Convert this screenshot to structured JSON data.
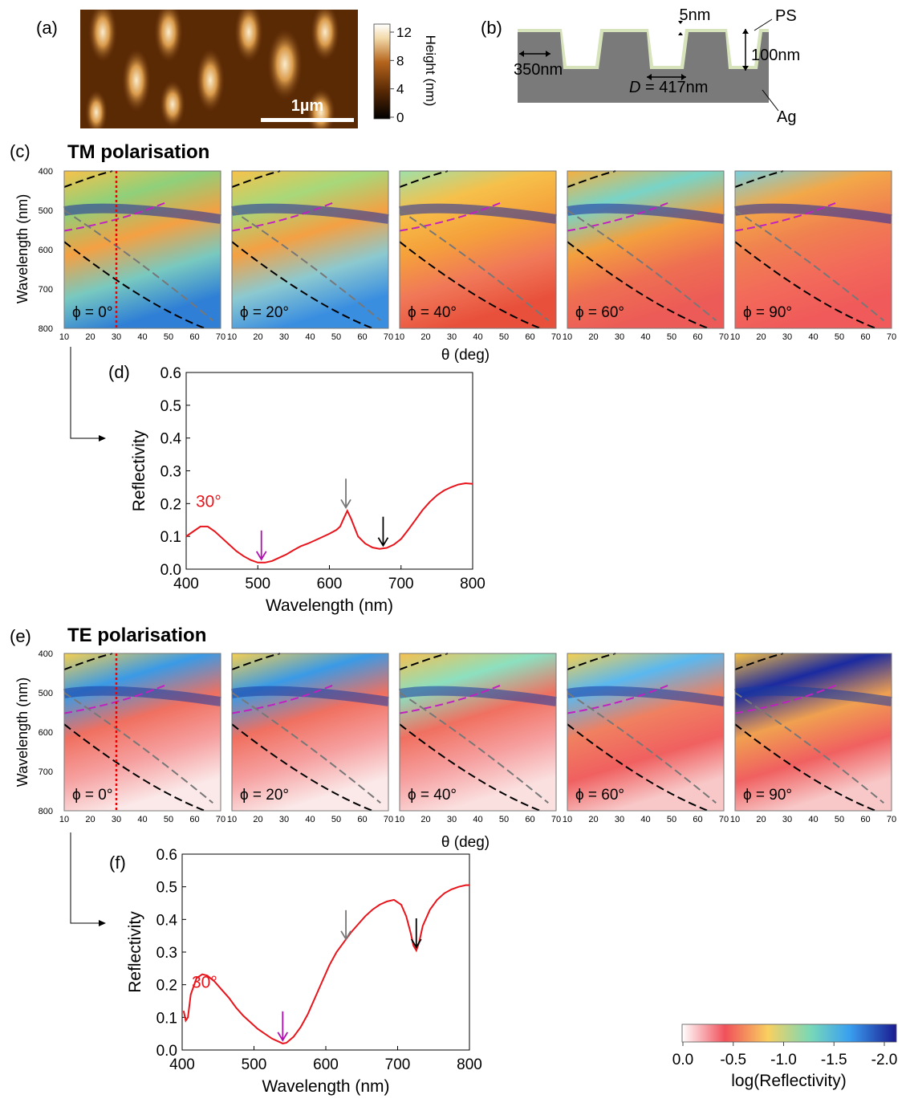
{
  "panel_labels": {
    "a": "(a)",
    "b": "(b)",
    "c": "(c)",
    "d": "(d)",
    "e": "(e)",
    "f": "(f)"
  },
  "afm": {
    "scalebar": "1µm",
    "colorbar_title": "Height (nm)",
    "colorbar_ticks": [
      "12",
      "8",
      "4",
      "0"
    ],
    "colors": [
      "#000000",
      "#5a2a05",
      "#b5651d",
      "#f2d9a8",
      "#ffffff"
    ]
  },
  "schematic": {
    "top_gap": "5nm",
    "coating": "PS",
    "depth": "100nm",
    "width": "350nm",
    "period_symbol": "D",
    "period_value": " = 417nm",
    "substrate": "Ag",
    "colors": {
      "ps": "#d6e3bb",
      "ag": "#7a7a7a"
    }
  },
  "tm": {
    "title": "TM polarisation",
    "ylabel": "Wavelength (nm)",
    "xlabel": "θ (deg)",
    "yticks": [
      "400",
      "500",
      "600",
      "700",
      "800"
    ],
    "xticks": [
      "10",
      "20",
      "30",
      "40",
      "50",
      "60",
      "70"
    ],
    "phi_labels": [
      "ϕ = 0°",
      "ϕ = 20°",
      "ϕ = 40°",
      "ϕ = 60°",
      "ϕ = 90°"
    ]
  },
  "te": {
    "title": "TE polarisation",
    "ylabel": "Wavelength (nm)",
    "xlabel": "θ (deg)",
    "yticks": [
      "400",
      "500",
      "600",
      "700",
      "800"
    ],
    "xticks": [
      "10",
      "20",
      "30",
      "40",
      "50",
      "60",
      "70"
    ],
    "phi_labels": [
      "ϕ = 0°",
      "ϕ = 20°",
      "ϕ = 40°",
      "ϕ = 60°",
      "ϕ = 90°"
    ]
  },
  "colorbar": {
    "title": "log(Reflectivity)",
    "ticks": [
      "0.0",
      "-0.5",
      "-1.0",
      "-1.5",
      "-2.0"
    ],
    "colors": [
      "#ffffff",
      "#f0505a",
      "#f8d060",
      "#78d8b8",
      "#3aa0f0",
      "#1a1a90"
    ]
  },
  "chart_data": [
    {
      "type": "line",
      "panel": "d",
      "xlabel": "Wavelength (nm)",
      "ylabel": "Reflectivity",
      "xlim": [
        400,
        800
      ],
      "ylim": [
        0,
        0.6
      ],
      "xticks": [
        "400",
        "500",
        "600",
        "700",
        "800"
      ],
      "yticks": [
        "0.0",
        "0.1",
        "0.2",
        "0.3",
        "0.4",
        "0.5",
        "0.6"
      ],
      "annotation": "30°",
      "arrows": {
        "magenta": 505,
        "gray": 623,
        "black": 675
      },
      "series": [
        {
          "color": "#e8141b",
          "x": [
            400,
            410,
            420,
            430,
            440,
            450,
            460,
            470,
            480,
            490,
            500,
            510,
            520,
            530,
            540,
            550,
            560,
            570,
            580,
            590,
            600,
            610,
            615,
            620,
            625,
            630,
            640,
            650,
            660,
            670,
            680,
            690,
            700,
            710,
            720,
            730,
            740,
            750,
            760,
            770,
            780,
            790,
            800
          ],
          "y": [
            0.1,
            0.115,
            0.13,
            0.13,
            0.115,
            0.095,
            0.075,
            0.055,
            0.04,
            0.028,
            0.02,
            0.02,
            0.025,
            0.035,
            0.045,
            0.058,
            0.07,
            0.078,
            0.088,
            0.098,
            0.108,
            0.12,
            0.13,
            0.155,
            0.178,
            0.155,
            0.1,
            0.078,
            0.066,
            0.062,
            0.065,
            0.075,
            0.092,
            0.12,
            0.15,
            0.18,
            0.205,
            0.225,
            0.24,
            0.25,
            0.258,
            0.262,
            0.26
          ]
        }
      ]
    },
    {
      "type": "line",
      "panel": "f",
      "xlabel": "Wavelength (nm)",
      "ylabel": "Reflectivity",
      "xlim": [
        400,
        800
      ],
      "ylim": [
        0,
        0.6
      ],
      "xticks": [
        "400",
        "500",
        "600",
        "700",
        "800"
      ],
      "yticks": [
        "0.0",
        "0.1",
        "0.2",
        "0.3",
        "0.4",
        "0.5",
        "0.6"
      ],
      "annotation": "30°",
      "arrows": {
        "magenta": 540,
        "gray": 628,
        "black": 726
      },
      "series": [
        {
          "color": "#e8141b",
          "x": [
            402,
            405,
            408,
            412,
            420,
            428,
            435,
            445,
            455,
            465,
            475,
            485,
            495,
            505,
            515,
            525,
            535,
            540,
            545,
            555,
            565,
            575,
            585,
            595,
            605,
            615,
            625,
            635,
            645,
            655,
            665,
            675,
            685,
            695,
            705,
            712,
            718,
            722,
            726,
            730,
            735,
            745,
            755,
            765,
            775,
            785,
            795,
            800
          ],
          "y": [
            0.12,
            0.09,
            0.1,
            0.17,
            0.22,
            0.232,
            0.228,
            0.21,
            0.185,
            0.16,
            0.13,
            0.105,
            0.085,
            0.065,
            0.05,
            0.035,
            0.025,
            0.02,
            0.022,
            0.04,
            0.07,
            0.11,
            0.16,
            0.21,
            0.26,
            0.3,
            0.33,
            0.36,
            0.385,
            0.41,
            0.43,
            0.445,
            0.455,
            0.46,
            0.445,
            0.41,
            0.36,
            0.32,
            0.305,
            0.33,
            0.38,
            0.43,
            0.46,
            0.48,
            0.492,
            0.5,
            0.505,
            0.505
          ]
        }
      ]
    }
  ]
}
